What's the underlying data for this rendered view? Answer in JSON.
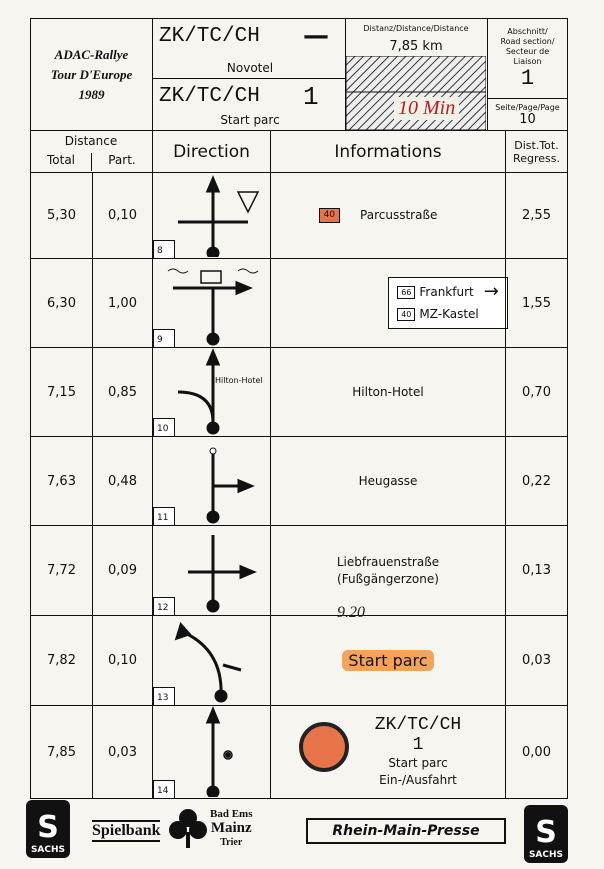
{
  "header": {
    "title": [
      "ADAC-Rallye",
      "Tour D'Europe",
      "1989"
    ],
    "from": {
      "code": "ZK/TC/CH",
      "number": "—",
      "place": "Novotel"
    },
    "to": {
      "code": "ZK/TC/CH",
      "number": "1",
      "place": "Start parc"
    },
    "distance_label": "Distanz/Distance/Distance",
    "distance": "7,85 km",
    "handwritten_time": "10 Min",
    "section_label": [
      "Abschnitt/",
      "Road section/",
      "Secteur de",
      "Liaison"
    ],
    "section": "1",
    "page_label": "Seite/Page/Page",
    "page": "10"
  },
  "columns": {
    "distance": "Distance",
    "total": "Total",
    "part": "Part.",
    "direction": "Direction",
    "informations": "Informations",
    "regress": [
      "Dist.Tot.",
      "Regress."
    ]
  },
  "rows": [
    {
      "total": "5,30",
      "part": "0,10",
      "box": "8",
      "road_sign": "40",
      "info": [
        "Parcusstraße"
      ],
      "regress": "2,55"
    },
    {
      "total": "6,30",
      "part": "1,00",
      "box": "9",
      "signs": [
        {
          "road": "66",
          "name": "Frankfurt"
        },
        {
          "road": "40",
          "name": "MZ-Kastel"
        }
      ],
      "regress": "1,55"
    },
    {
      "total": "7,15",
      "part": "0,85",
      "box": "10",
      "direction_label": "Hilton-Hotel",
      "info": [
        "Hilton-Hotel"
      ],
      "regress": "0,70"
    },
    {
      "total": "7,63",
      "part": "0,48",
      "box": "11",
      "info": [
        "Heugasse"
      ],
      "regress": "0,22"
    },
    {
      "total": "7,72",
      "part": "0,09",
      "box": "12",
      "info": [
        "Liebfrauenstraße",
        "(Fußgängerzone)"
      ],
      "regress": "0,13"
    },
    {
      "total": "7,82",
      "part": "0,10",
      "box": "13",
      "handwritten": "9.20",
      "info": [
        "Start parc"
      ],
      "regress": "0,03"
    },
    {
      "total": "7,85",
      "part": "0,03",
      "box": "14",
      "info": [
        "ZK/TC/CH",
        "1",
        "Start parc",
        "Ein-/Ausfahrt"
      ],
      "regress": "0,00"
    }
  ],
  "footer": {
    "left_logo": "SACHS",
    "spielbank": "Spielbank",
    "city": [
      "Bad Ems",
      "Mainz",
      "Trier"
    ],
    "press": "Rhein-Main-Presse",
    "right_logo": "SACHS"
  }
}
